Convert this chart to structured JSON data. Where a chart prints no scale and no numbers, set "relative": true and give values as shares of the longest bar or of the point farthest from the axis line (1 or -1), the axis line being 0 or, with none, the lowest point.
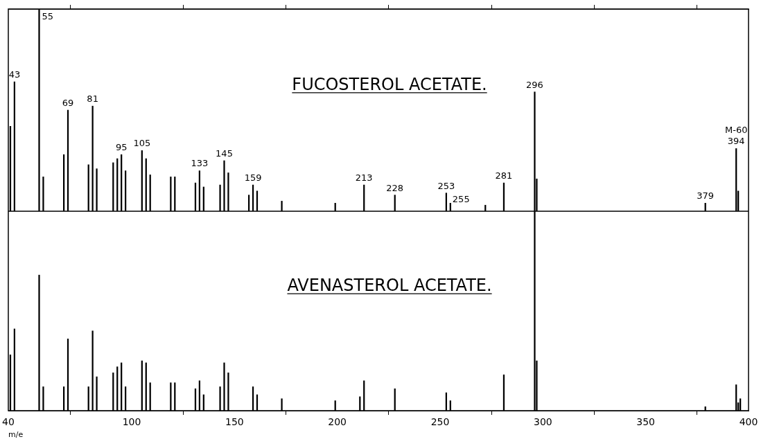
{
  "chart_data": [
    {
      "type": "bar",
      "title": "FUCOSTEROL ACETATE.",
      "relative": true,
      "color": "#000000",
      "xlim": [
        40,
        400
      ],
      "xticks": [
        40,
        100,
        150,
        200,
        250,
        300,
        350,
        400
      ],
      "tick_labels": false,
      "x": [
        41,
        43,
        55,
        57,
        67,
        69,
        79,
        81,
        83,
        91,
        93,
        95,
        97,
        105,
        107,
        109,
        119,
        121,
        131,
        133,
        135,
        143,
        145,
        147,
        157,
        159,
        161,
        173,
        199,
        213,
        228,
        253,
        255,
        272,
        281,
        296,
        297,
        379,
        394,
        395
      ],
      "values": [
        0.42,
        0.64,
        1,
        0.17,
        0.28,
        0.5,
        0.23,
        0.52,
        0.21,
        0.24,
        0.26,
        0.28,
        0.2,
        0.3,
        0.26,
        0.18,
        0.17,
        0.17,
        0.14,
        0.2,
        0.12,
        0.13,
        0.25,
        0.19,
        0.08,
        0.13,
        0.1,
        0.05,
        0.04,
        0.13,
        0.08,
        0.09,
        0.04,
        0.03,
        0.14,
        0.59,
        0.16,
        0.04,
        0.31,
        0.1
      ],
      "annotations": [
        {
          "text": "43",
          "x": 43,
          "y": 0.64
        },
        {
          "text": "55",
          "x": 55,
          "y": 1
        },
        {
          "text": "69",
          "x": 69,
          "y": 0.5
        },
        {
          "text": "81",
          "x": 81,
          "y": 0.52
        },
        {
          "text": "95",
          "x": 95,
          "y": 0.28
        },
        {
          "text": "105",
          "x": 105,
          "y": 0.3
        },
        {
          "text": "133",
          "x": 133,
          "y": 0.2
        },
        {
          "text": "145",
          "x": 145,
          "y": 0.25
        },
        {
          "text": "159",
          "x": 159,
          "y": 0.13
        },
        {
          "text": "213",
          "x": 213,
          "y": 0.13
        },
        {
          "text": "228",
          "x": 228,
          "y": 0.08
        },
        {
          "text": "253",
          "x": 253,
          "y": 0.09
        },
        {
          "text": "255",
          "x": 255,
          "y": 0.04
        },
        {
          "text": "281",
          "x": 281,
          "y": 0.14
        },
        {
          "text": "296",
          "x": 296,
          "y": 0.59
        },
        {
          "text": "379",
          "x": 379,
          "y": 0.04
        },
        {
          "text": "394",
          "x": 394,
          "y": 0.31
        },
        {
          "text": "M-60",
          "x": 394,
          "y": 0.31
        }
      ]
    },
    {
      "type": "bar",
      "title": "AVENASTEROL ACETATE.",
      "relative": true,
      "color": "#000000",
      "xlim": [
        40,
        400
      ],
      "xticks": [
        40,
        100,
        150,
        200,
        250,
        300,
        350,
        400
      ],
      "xlabel": "m/e",
      "x": [
        41,
        43,
        55,
        57,
        67,
        69,
        79,
        81,
        83,
        91,
        93,
        95,
        97,
        105,
        107,
        109,
        119,
        121,
        131,
        133,
        135,
        143,
        145,
        147,
        159,
        161,
        173,
        199,
        211,
        213,
        228,
        253,
        255,
        281,
        296,
        297,
        379,
        394,
        395,
        396
      ],
      "values": [
        0.28,
        0.41,
        0.68,
        0.12,
        0.12,
        0.36,
        0.12,
        0.4,
        0.17,
        0.19,
        0.22,
        0.24,
        0.12,
        0.25,
        0.24,
        0.14,
        0.14,
        0.14,
        0.11,
        0.15,
        0.08,
        0.12,
        0.24,
        0.19,
        0.12,
        0.08,
        0.06,
        0.05,
        0.07,
        0.15,
        0.11,
        0.09,
        0.05,
        0.18,
        1,
        0.25,
        0.02,
        0.13,
        0.04,
        0.06
      ]
    }
  ]
}
